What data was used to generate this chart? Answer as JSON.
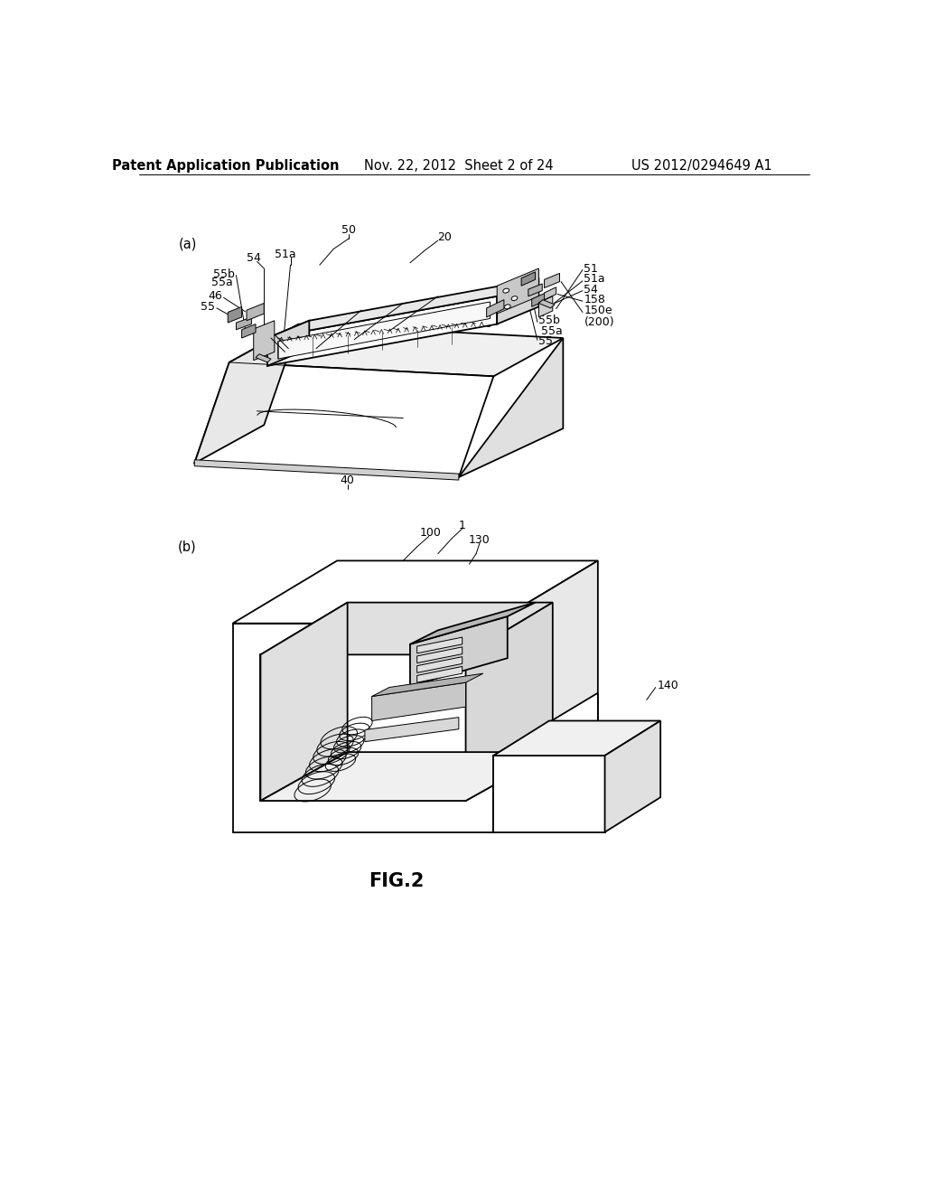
{
  "bg_color": "#ffffff",
  "header_left": "Patent Application Publication",
  "header_center": "Nov. 22, 2012  Sheet 2 of 24",
  "header_right": "US 2012/0294649 A1",
  "fig_caption": "FIG.2",
  "section_a": "(a)",
  "section_b": "(b)",
  "lw": 1.3,
  "tlw": 0.7,
  "fs_hdr": 10.5,
  "fs_lbl": 10.5,
  "fs_ref": 9.0,
  "fs_cap": 15
}
